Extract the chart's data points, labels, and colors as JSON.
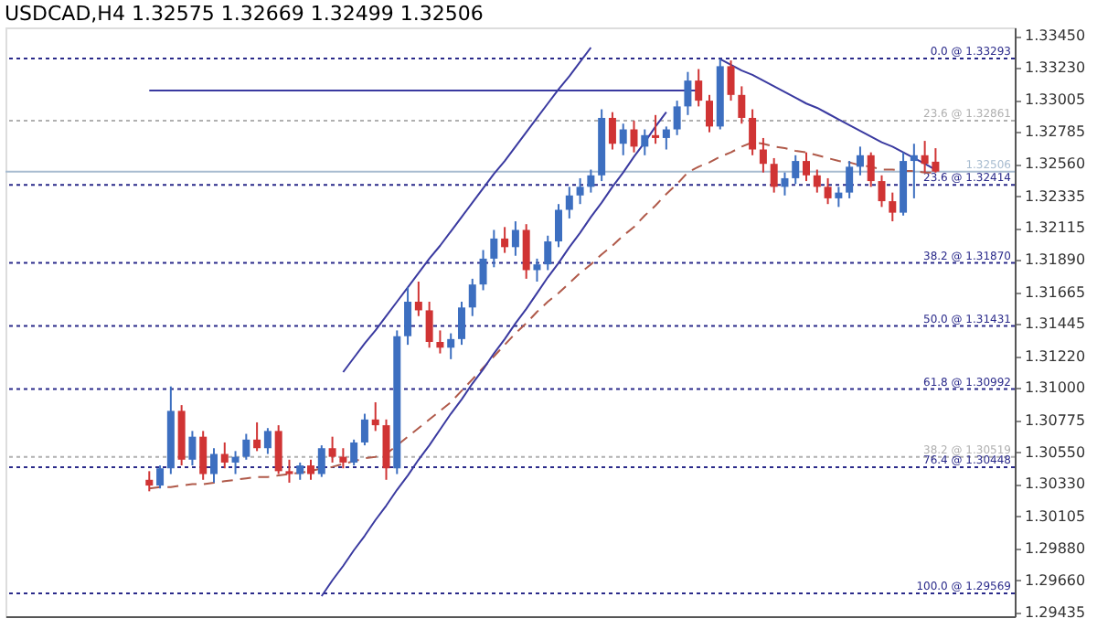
{
  "chart_data": {
    "type": "candlestick",
    "title": "USDCAD,H4  1.32575 1.32669 1.32499 1.32506",
    "categories": [
      null,
      null,
      null,
      null,
      null,
      null,
      null,
      null,
      null,
      null,
      null,
      null,
      null,
      null,
      null,
      null,
      null,
      null,
      null,
      null,
      null,
      null,
      null,
      null,
      null,
      null,
      null,
      null,
      null,
      null,
      null,
      null,
      null,
      null,
      null,
      null,
      null,
      null,
      null,
      null,
      null,
      null,
      null,
      null,
      null,
      null,
      null,
      null,
      null,
      null,
      null,
      null,
      null,
      null,
      null,
      null,
      null,
      null,
      null,
      null,
      null,
      null,
      null,
      null,
      null,
      null,
      null,
      null,
      null,
      null,
      null,
      null,
      null,
      null
    ],
    "ohlc": [
      [
        1.3036,
        1.3042,
        1.3028,
        1.3032
      ],
      [
        1.3032,
        1.3046,
        1.303,
        1.3044
      ],
      [
        1.3044,
        1.3101,
        1.304,
        1.3084
      ],
      [
        1.3084,
        1.3088,
        1.3046,
        1.305
      ],
      [
        1.305,
        1.307,
        1.3046,
        1.3066
      ],
      [
        1.3066,
        1.307,
        1.3036,
        1.304
      ],
      [
        1.304,
        1.3058,
        1.3034,
        1.3054
      ],
      [
        1.3054,
        1.3062,
        1.3044,
        1.3048
      ],
      [
        1.3048,
        1.3056,
        1.304,
        1.3052
      ],
      [
        1.3052,
        1.3068,
        1.305,
        1.3064
      ],
      [
        1.3064,
        1.3076,
        1.3056,
        1.3058
      ],
      [
        1.3058,
        1.3072,
        1.3054,
        1.307
      ],
      [
        1.307,
        1.3074,
        1.304,
        1.3042
      ],
      [
        1.3042,
        1.305,
        1.3034,
        1.304
      ],
      [
        1.304,
        1.3048,
        1.3036,
        1.3046
      ],
      [
        1.3046,
        1.305,
        1.3036,
        1.304
      ],
      [
        1.304,
        1.306,
        1.3038,
        1.3058
      ],
      [
        1.3058,
        1.3066,
        1.3048,
        1.3052
      ],
      [
        1.3052,
        1.3058,
        1.3044,
        1.3048
      ],
      [
        1.3048,
        1.3064,
        1.3046,
        1.3062
      ],
      [
        1.3062,
        1.3082,
        1.306,
        1.3078
      ],
      [
        1.3078,
        1.309,
        1.307,
        1.3074
      ],
      [
        1.3074,
        1.3078,
        1.3036,
        1.3044
      ],
      [
        1.3044,
        1.314,
        1.304,
        1.3136
      ],
      [
        1.3136,
        1.317,
        1.313,
        1.316
      ],
      [
        1.316,
        1.3174,
        1.315,
        1.3154
      ],
      [
        1.3154,
        1.316,
        1.3128,
        1.3132
      ],
      [
        1.3132,
        1.314,
        1.3124,
        1.3128
      ],
      [
        1.3128,
        1.3138,
        1.312,
        1.3134
      ],
      [
        1.3134,
        1.316,
        1.313,
        1.3156
      ],
      [
        1.3156,
        1.3176,
        1.315,
        1.3172
      ],
      [
        1.3172,
        1.3196,
        1.3168,
        1.319
      ],
      [
        1.319,
        1.321,
        1.3184,
        1.3204
      ],
      [
        1.3204,
        1.3212,
        1.3194,
        1.3198
      ],
      [
        1.3198,
        1.3216,
        1.3192,
        1.321
      ],
      [
        1.321,
        1.3214,
        1.3176,
        1.3182
      ],
      [
        1.3182,
        1.319,
        1.3174,
        1.3186
      ],
      [
        1.3186,
        1.3206,
        1.3182,
        1.3202
      ],
      [
        1.3202,
        1.3228,
        1.3198,
        1.3224
      ],
      [
        1.3224,
        1.324,
        1.3218,
        1.3234
      ],
      [
        1.3234,
        1.3246,
        1.3228,
        1.324
      ],
      [
        1.324,
        1.3252,
        1.3236,
        1.3248
      ],
      [
        1.3248,
        1.3294,
        1.3244,
        1.3288
      ],
      [
        1.3288,
        1.3292,
        1.3266,
        1.327
      ],
      [
        1.327,
        1.3284,
        1.3262,
        1.328
      ],
      [
        1.328,
        1.3286,
        1.3264,
        1.3268
      ],
      [
        1.3268,
        1.328,
        1.3262,
        1.3276
      ],
      [
        1.3276,
        1.329,
        1.327,
        1.3274
      ],
      [
        1.3274,
        1.3282,
        1.3266,
        1.328
      ],
      [
        1.328,
        1.33,
        1.3276,
        1.3296
      ],
      [
        1.3296,
        1.332,
        1.329,
        1.3314
      ],
      [
        1.3314,
        1.3322,
        1.3296,
        1.33
      ],
      [
        1.33,
        1.3304,
        1.3278,
        1.3282
      ],
      [
        1.3282,
        1.3329,
        1.328,
        1.3324
      ],
      [
        1.3324,
        1.3328,
        1.33,
        1.3304
      ],
      [
        1.3304,
        1.331,
        1.3284,
        1.3288
      ],
      [
        1.3288,
        1.3294,
        1.3262,
        1.3266
      ],
      [
        1.3266,
        1.3274,
        1.325,
        1.3256
      ],
      [
        1.3256,
        1.326,
        1.3236,
        1.324
      ],
      [
        1.324,
        1.325,
        1.3234,
        1.3246
      ],
      [
        1.3246,
        1.3262,
        1.3242,
        1.3258
      ],
      [
        1.3258,
        1.3264,
        1.3244,
        1.3248
      ],
      [
        1.3248,
        1.3252,
        1.3236,
        1.324
      ],
      [
        1.324,
        1.3246,
        1.3228,
        1.3232
      ],
      [
        1.3232,
        1.324,
        1.3226,
        1.3236
      ],
      [
        1.3236,
        1.3258,
        1.3232,
        1.3254
      ],
      [
        1.3254,
        1.3268,
        1.3248,
        1.3262
      ],
      [
        1.3262,
        1.3264,
        1.324,
        1.3244
      ],
      [
        1.3244,
        1.3248,
        1.3226,
        1.323
      ],
      [
        1.323,
        1.3236,
        1.3216,
        1.3222
      ],
      [
        1.3222,
        1.3264,
        1.322,
        1.3258
      ],
      [
        1.3258,
        1.327,
        1.3232,
        1.3262
      ],
      [
        1.3262,
        1.3272,
        1.325,
        1.3256
      ],
      [
        1.32575,
        1.32669,
        1.32499,
        1.32506
      ]
    ],
    "series": [
      {
        "type": "line",
        "color": "#b05a4a",
        "line_style": "dashed",
        "values": [
          1.303,
          1.3031,
          1.3031,
          1.3032,
          1.3033,
          1.3033,
          1.3034,
          1.3035,
          1.3036,
          1.3037,
          1.3038,
          1.3038,
          1.3039,
          1.304,
          1.3041,
          1.3042,
          1.3044,
          1.3045,
          1.3047,
          1.3049,
          1.3051,
          1.3052,
          1.3054,
          1.306,
          1.3066,
          1.3072,
          1.3078,
          1.3084,
          1.309,
          1.3098,
          1.3106,
          1.3114,
          1.3122,
          1.313,
          1.3138,
          1.3145,
          1.3153,
          1.316,
          1.3166,
          1.3173,
          1.318,
          1.3186,
          1.3193,
          1.3199,
          1.3206,
          1.3212,
          1.322,
          1.3227,
          1.3235,
          1.3242,
          1.325,
          1.3254,
          1.3257,
          1.3261,
          1.3264,
          1.3268,
          1.3271,
          1.327,
          1.3268,
          1.3267,
          1.3265,
          1.3264,
          1.3262,
          1.326,
          1.3258,
          1.3257,
          1.3255,
          1.3254,
          1.3252,
          1.3252,
          1.3251,
          1.3251,
          1.325,
          1.325
        ]
      },
      {
        "type": "line",
        "color": "#3a3aa0",
        "line_style": "solid",
        "values": [
          null,
          null,
          null,
          null,
          null,
          null,
          null,
          null,
          null,
          null,
          null,
          null,
          null,
          null,
          null,
          null,
          1.2955,
          1.2966,
          1.2976,
          1.2987,
          1.2997,
          1.3008,
          1.3018,
          1.3029,
          1.3039,
          1.305,
          1.306,
          1.3071,
          1.3082,
          1.3092,
          1.3103,
          1.3113,
          1.3124,
          1.3134,
          1.3145,
          1.3155,
          1.3166,
          1.3177,
          1.3187,
          1.3198,
          1.3208,
          1.3219,
          1.3229,
          1.324,
          1.325,
          1.3261,
          1.3271,
          1.3282,
          1.3292,
          null,
          null,
          null,
          null,
          null,
          null,
          null,
          null,
          null,
          null,
          null,
          null,
          null,
          null,
          null,
          null,
          null,
          null,
          null,
          null,
          null,
          null,
          null,
          null,
          null
        ]
      },
      {
        "type": "line",
        "color": "#3a3aa0",
        "line_style": "solid",
        "values": [
          null,
          null,
          null,
          null,
          null,
          null,
          null,
          null,
          null,
          null,
          null,
          null,
          null,
          null,
          null,
          null,
          null,
          null,
          1.3111,
          1.3121,
          1.3131,
          1.314,
          1.315,
          1.316,
          1.317,
          1.318,
          1.319,
          1.3199,
          1.3209,
          1.3219,
          1.3229,
          1.3239,
          1.3249,
          1.3258,
          1.3268,
          1.3278,
          1.3288,
          1.3298,
          1.3308,
          1.3317,
          1.3327,
          1.3337,
          null,
          null,
          null,
          null,
          null,
          null,
          null,
          null,
          null,
          null,
          null,
          null,
          null,
          null,
          null,
          null,
          null,
          null,
          null,
          null,
          null,
          null,
          null,
          null,
          null,
          null,
          null,
          null,
          null,
          null,
          null,
          null
        ]
      },
      {
        "type": "line",
        "color": "#3a3aa0",
        "line_style": "solid",
        "values": [
          1.3307,
          1.3307,
          1.3307,
          1.3307,
          1.3307,
          1.3307,
          1.3307,
          1.3307,
          1.3307,
          1.3307,
          1.3307,
          1.3307,
          1.3307,
          1.3307,
          1.3307,
          1.3307,
          1.3307,
          1.3307,
          1.3307,
          1.3307,
          1.3307,
          1.3307,
          1.3307,
          1.3307,
          1.3307,
          1.3307,
          1.3307,
          1.3307,
          1.3307,
          1.3307,
          1.3307,
          1.3307,
          1.3307,
          1.3307,
          1.3307,
          1.3307,
          1.3307,
          1.3307,
          1.3307,
          1.3307,
          1.3307,
          1.3307,
          1.3307,
          1.3307,
          1.3307,
          1.3307,
          1.3307,
          1.3307,
          1.3307,
          1.3307,
          1.3307,
          1.3307,
          null,
          null,
          null,
          null,
          null,
          null,
          null,
          null,
          null,
          null,
          null,
          null,
          null,
          null,
          null,
          null,
          null,
          null,
          null,
          null,
          null,
          null
        ]
      },
      {
        "type": "line",
        "color": "#3a3aa0",
        "line_style": "solid",
        "values": [
          null,
          null,
          null,
          null,
          null,
          null,
          null,
          null,
          null,
          null,
          null,
          null,
          null,
          null,
          null,
          null,
          null,
          null,
          null,
          null,
          null,
          null,
          null,
          null,
          null,
          null,
          null,
          null,
          null,
          null,
          null,
          null,
          null,
          null,
          null,
          null,
          null,
          null,
          null,
          null,
          null,
          null,
          null,
          null,
          null,
          null,
          null,
          null,
          null,
          null,
          null,
          null,
          null,
          1.3329,
          1.3325,
          1.3321,
          1.3318,
          1.3314,
          1.331,
          1.3306,
          1.3302,
          1.3298,
          1.3295,
          1.3291,
          1.3287,
          1.3283,
          1.3279,
          1.3275,
          1.3271,
          1.3268,
          1.3264,
          1.326,
          1.3256,
          1.3252
        ]
      }
    ],
    "ref_lines": [
      {
        "axis": "y",
        "value": 1.33293,
        "label": "0.0 @ 1.33293",
        "color": "#2a2a8a",
        "line_style": "dotted"
      },
      {
        "axis": "y",
        "value": 1.32861,
        "label": "23.6 @ 1.32861",
        "color": "#b0b0b0",
        "line_style": "dotted"
      },
      {
        "axis": "y",
        "value": 1.32506,
        "label": "1.32506",
        "color": "#a8bcd0",
        "line_style": "solid"
      },
      {
        "axis": "y",
        "value": 1.32414,
        "label": "23.6 @ 1.32414",
        "color": "#2a2a8a",
        "line_style": "dotted"
      },
      {
        "axis": "y",
        "value": 1.3187,
        "label": "38.2 @ 1.31870",
        "color": "#2a2a8a",
        "line_style": "dotted"
      },
      {
        "axis": "y",
        "value": 1.31431,
        "label": "50.0 @ 1.31431",
        "color": "#2a2a8a",
        "line_style": "dotted"
      },
      {
        "axis": "y",
        "value": 1.30992,
        "label": "61.8 @ 1.30992",
        "color": "#2a2a8a",
        "line_style": "dotted"
      },
      {
        "axis": "y",
        "value": 1.30519,
        "label": "38.2 @ 1.30519",
        "color": "#b0b0b0",
        "line_style": "dotted"
      },
      {
        "axis": "y",
        "value": 1.30448,
        "label": "76.4 @ 1.30448",
        "color": "#2a2a8a",
        "line_style": "dotted"
      },
      {
        "axis": "y",
        "value": 1.29569,
        "label": "100.0 @ 1.29569",
        "color": "#2a2a8a",
        "line_style": "dotted"
      }
    ],
    "ylim": [
      1.2941,
      1.3351
    ],
    "yticks": [
      {
        "value": 1.3345,
        "label": "1.33450"
      },
      {
        "value": 1.3323,
        "label": "1.33230"
      },
      1.33005,
      1.32785,
      {
        "value": 1.3256,
        "label": "1.32560"
      },
      1.32335,
      1.32115,
      {
        "value": 1.3189,
        "label": "1.31890"
      },
      1.31665,
      1.31445,
      {
        "value": 1.3122,
        "label": "1.31220"
      },
      {
        "value": 1.31,
        "label": "1.31000"
      },
      1.30775,
      {
        "value": 1.3055,
        "label": "1.30550"
      },
      {
        "value": 1.3033,
        "label": "1.30330"
      },
      1.30105,
      {
        "value": 1.2988,
        "label": "1.29880"
      },
      {
        "value": 1.2966,
        "label": "1.29660"
      },
      1.29435
    ],
    "tick_labels": "y",
    "grid": false,
    "legend": false
  }
}
